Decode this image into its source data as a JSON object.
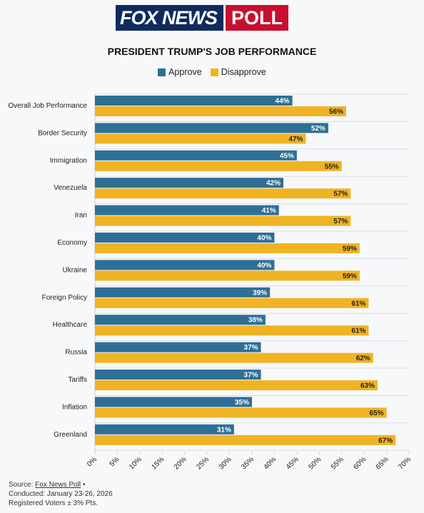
{
  "logo": {
    "fox_news": "FOX NEWS",
    "poll": "POLL"
  },
  "chart_data": {
    "type": "bar",
    "orientation": "horizontal",
    "title": "PRESIDENT TRUMP'S JOB PERFORMANCE",
    "categories": [
      "Overall Job Performance",
      "Border Security",
      "Immigration",
      "Venezuela",
      "Iran",
      "Economy",
      "Ukraine",
      "Foreign Policy",
      "Healthcare",
      "Russia",
      "Tariffs",
      "Inflation",
      "Greenland"
    ],
    "series": [
      {
        "name": "Approve",
        "color": "#2e6f96",
        "values": [
          44,
          52,
          45,
          42,
          41,
          40,
          40,
          39,
          38,
          37,
          37,
          35,
          31
        ]
      },
      {
        "name": "Disapprove",
        "color": "#f0b323",
        "values": [
          56,
          47,
          55,
          57,
          57,
          59,
          59,
          61,
          61,
          62,
          63,
          65,
          67
        ]
      }
    ],
    "xlim": [
      0,
      70
    ],
    "xticks": [
      "0%",
      "5%",
      "10%",
      "15%",
      "20%",
      "25%",
      "30%",
      "35%",
      "40%",
      "45%",
      "50%",
      "55%",
      "60%",
      "65%",
      "70%"
    ],
    "grid": true,
    "legend_position": "top-center"
  },
  "footer": {
    "source_prefix": "Source:",
    "source_link": "Fox News Poll",
    "source_suffix": "•",
    "conducted": "Conducted: January 23-26, 2026",
    "sample": "Registered Voters ± 3% Pts."
  }
}
